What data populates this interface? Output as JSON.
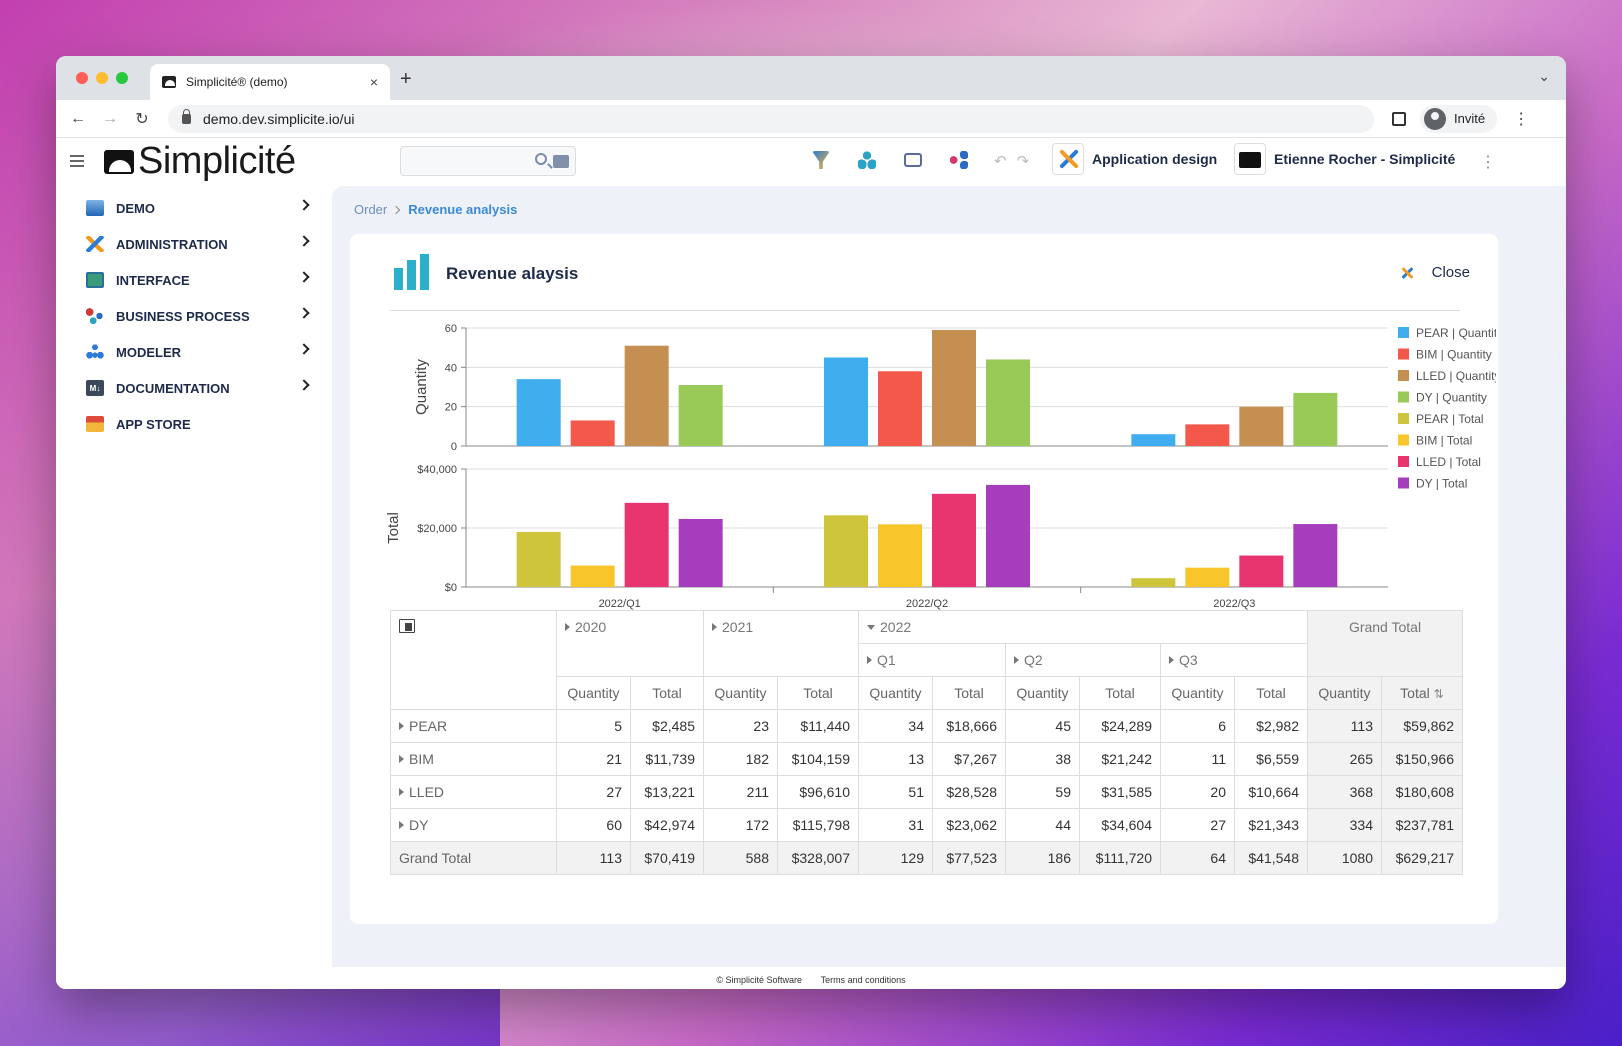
{
  "browser": {
    "tab_title": "Simplicité® (demo)",
    "tab_close": "×",
    "new_tab": "+",
    "url": "demo.dev.simplicite.io/ui",
    "profile_label": "Invité"
  },
  "app": {
    "logo_text": "Simplicité",
    "scope_label": "Application design",
    "user_label": "Etienne Rocher - Simplicité"
  },
  "sidebar": {
    "items": [
      {
        "label": "DEMO",
        "icon": "demo-icon",
        "has_chevron": true
      },
      {
        "label": "ADMINISTRATION",
        "icon": "administration-icon",
        "has_chevron": true
      },
      {
        "label": "INTERFACE",
        "icon": "interface-icon",
        "has_chevron": true
      },
      {
        "label": "BUSINESS PROCESS",
        "icon": "business-process-icon",
        "has_chevron": true
      },
      {
        "label": "MODELER",
        "icon": "modeler-icon",
        "has_chevron": true
      },
      {
        "label": "DOCUMENTATION",
        "icon": "documentation-icon",
        "has_chevron": true
      },
      {
        "label": "APP STORE",
        "icon": "app-store-icon",
        "has_chevron": false
      }
    ]
  },
  "breadcrumb": {
    "parent": "Order",
    "current": "Revenue analysis"
  },
  "panel": {
    "title": "Revenue alaysis",
    "close_label": "Close"
  },
  "chart_data": [
    {
      "type": "bar",
      "categories": [
        "2022/Q1",
        "2022/Q2",
        "2022/Q3"
      ],
      "ylabel": "Quantity",
      "ylim": [
        0,
        60
      ],
      "yticks": [
        "0",
        "20",
        "40",
        "60"
      ],
      "series": [
        {
          "name": "PEAR | Quantity",
          "color": "#3fadee",
          "values": [
            34,
            45,
            6
          ]
        },
        {
          "name": "BIM | Quantity",
          "color": "#f4584a",
          "values": [
            13,
            38,
            11
          ]
        },
        {
          "name": "LLED | Quantity",
          "color": "#c68f52",
          "values": [
            51,
            59,
            20
          ]
        },
        {
          "name": "DY | Quantity",
          "color": "#99c957",
          "values": [
            31,
            44,
            27
          ]
        }
      ]
    },
    {
      "type": "bar",
      "categories": [
        "2022/Q1",
        "2022/Q2",
        "2022/Q3"
      ],
      "ylabel": "Total",
      "ylim": [
        0,
        40000
      ],
      "yticks": [
        "$0",
        "$20,000",
        "$40,000"
      ],
      "series": [
        {
          "name": "PEAR | Total",
          "color": "#cec53c",
          "values": [
            18666,
            24289,
            2982
          ]
        },
        {
          "name": "BIM | Total",
          "color": "#f8c62a",
          "values": [
            7267,
            21242,
            6559
          ]
        },
        {
          "name": "LLED | Total",
          "color": "#e9356f",
          "values": [
            28528,
            31585,
            10664
          ]
        },
        {
          "name": "DY | Total",
          "color": "#a63dbd",
          "values": [
            23062,
            34604,
            21343
          ]
        }
      ]
    }
  ],
  "pivot": {
    "years": [
      "2020",
      "2021",
      "2022"
    ],
    "quarters": [
      "Q1",
      "Q2",
      "Q3"
    ],
    "grand_total_label": "Grand Total",
    "measure_quantity": "Quantity",
    "measure_total": "Total",
    "rows": [
      {
        "label": "PEAR",
        "cells": [
          "5",
          "$2,485",
          "23",
          "$11,440",
          "34",
          "$18,666",
          "45",
          "$24,289",
          "6",
          "$2,982",
          "113",
          "$59,862"
        ]
      },
      {
        "label": "BIM",
        "cells": [
          "21",
          "$11,739",
          "182",
          "$104,159",
          "13",
          "$7,267",
          "38",
          "$21,242",
          "11",
          "$6,559",
          "265",
          "$150,966"
        ]
      },
      {
        "label": "LLED",
        "cells": [
          "27",
          "$13,221",
          "211",
          "$96,610",
          "51",
          "$28,528",
          "59",
          "$31,585",
          "20",
          "$10,664",
          "368",
          "$180,608"
        ]
      },
      {
        "label": "DY",
        "cells": [
          "60",
          "$42,974",
          "172",
          "$115,798",
          "31",
          "$23,062",
          "44",
          "$34,604",
          "27",
          "$21,343",
          "334",
          "$237,781"
        ]
      }
    ],
    "grand_total_row": {
      "label": "Grand Total",
      "cells": [
        "113",
        "$70,419",
        "588",
        "$328,007",
        "129",
        "$77,523",
        "186",
        "$111,720",
        "64",
        "$41,548",
        "1080",
        "$629,217"
      ]
    }
  },
  "footer": {
    "copyright": "© Simplicité Software",
    "terms": "Terms and conditions"
  }
}
